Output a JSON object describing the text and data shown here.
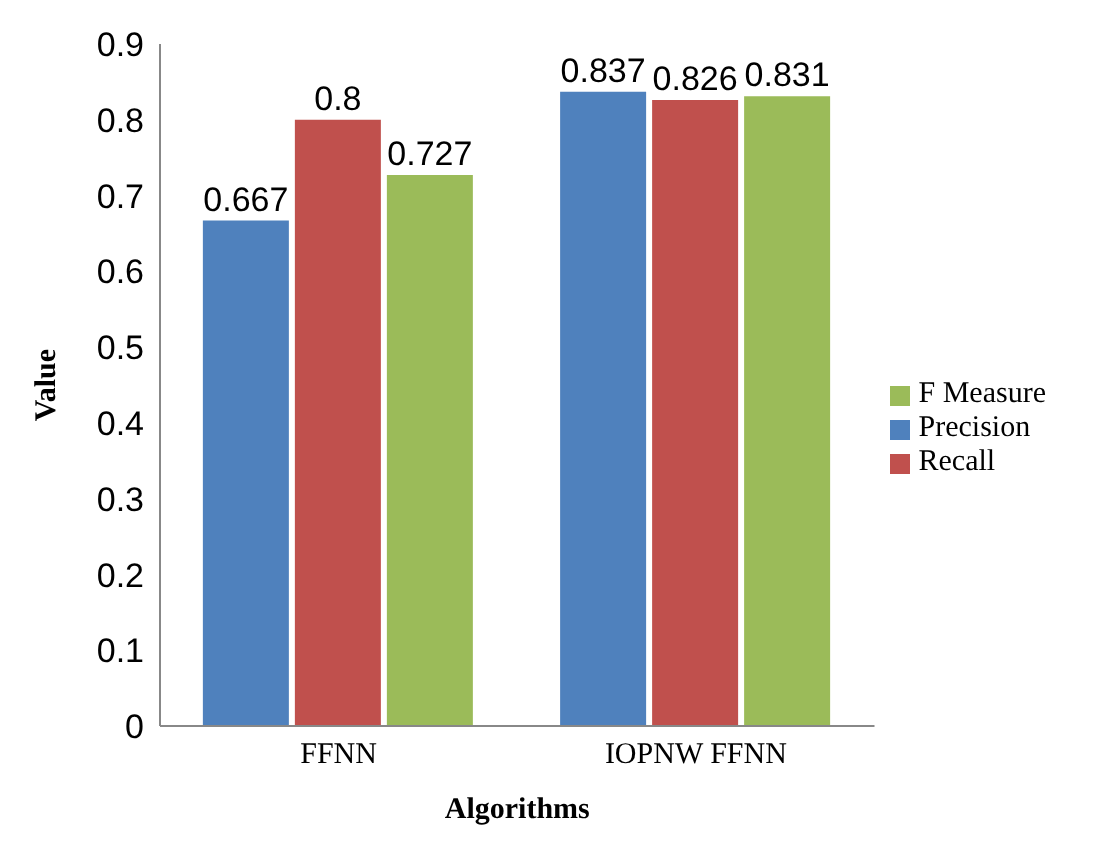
{
  "chart_data": {
    "type": "bar",
    "xlabel": "Algorithms",
    "ylabel": "Value",
    "categories": [
      "FFNN",
      "IOPNW FFNN"
    ],
    "series": [
      {
        "name": "Precision",
        "color": "#4f81bd",
        "values": [
          0.667,
          0.837
        ]
      },
      {
        "name": "Recall",
        "color": "#c0504d",
        "values": [
          0.8,
          0.826
        ]
      },
      {
        "name": "F Measure",
        "color": "#9bbb59",
        "values": [
          0.727,
          0.831
        ]
      }
    ],
    "ylim": [
      0,
      0.9
    ],
    "yticks": [
      0,
      0.1,
      0.2,
      0.3,
      0.4,
      0.5,
      0.6,
      0.7,
      0.8,
      0.9
    ],
    "grid": false,
    "legend": "right",
    "data_labels": true
  }
}
